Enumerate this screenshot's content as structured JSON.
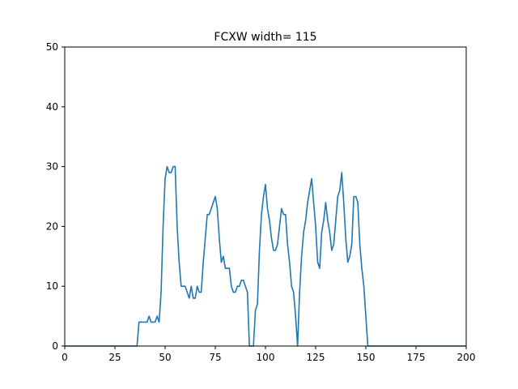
{
  "chart_data": {
    "type": "line",
    "title": "FCXW width= 115",
    "xlabel": "",
    "ylabel": "",
    "xlim": [
      0,
      200
    ],
    "ylim": [
      0,
      50
    ],
    "xticks": [
      0,
      25,
      50,
      75,
      100,
      125,
      150,
      175,
      200
    ],
    "yticks": [
      0,
      10,
      20,
      30,
      40,
      50
    ],
    "grid": false,
    "line_color": "#1f77b4",
    "series": [
      {
        "x": [
          0,
          36,
          37,
          38,
          39,
          40,
          41,
          42,
          43,
          44,
          45,
          46,
          47,
          48,
          49,
          50,
          51,
          52,
          53,
          54,
          55,
          56,
          57,
          58,
          59,
          60,
          61,
          62,
          63,
          64,
          65,
          66,
          67,
          68,
          69,
          70,
          71,
          72,
          73,
          74,
          75,
          76,
          77,
          78,
          79,
          80,
          81,
          82,
          83,
          84,
          85,
          86,
          87,
          88,
          89,
          90,
          91,
          92,
          93,
          94,
          95,
          96,
          97,
          98,
          99,
          100,
          101,
          102,
          103,
          104,
          105,
          106,
          107,
          108,
          109,
          110,
          111,
          112,
          113,
          114,
          115,
          116,
          117,
          118,
          119,
          120,
          121,
          122,
          123,
          124,
          125,
          126,
          127,
          128,
          129,
          130,
          131,
          132,
          133,
          134,
          135,
          136,
          137,
          138,
          139,
          140,
          141,
          142,
          143,
          144,
          145,
          146,
          147,
          148,
          149,
          150,
          151,
          152,
          200
        ],
        "y": [
          0,
          0,
          4,
          4,
          4,
          4,
          4,
          5,
          4,
          4,
          4,
          5,
          4,
          9,
          20,
          28,
          30,
          29,
          29,
          30,
          30,
          20,
          14,
          10,
          10,
          10,
          9,
          8,
          10,
          8,
          8,
          10,
          9,
          9,
          14,
          18,
          22,
          22,
          23,
          24,
          25,
          23,
          18,
          14,
          15,
          13,
          13,
          13,
          10,
          9,
          9,
          10,
          10,
          11,
          11,
          10,
          9,
          0,
          0,
          0,
          6,
          7,
          16,
          22,
          25,
          27,
          23,
          21,
          18,
          16,
          16,
          17,
          20,
          23,
          22,
          22,
          17,
          14,
          10,
          9,
          5,
          0,
          9,
          15,
          19,
          21,
          24,
          26,
          28,
          24,
          20,
          14,
          13,
          19,
          21,
          24,
          21,
          19,
          16,
          17,
          21,
          25,
          26,
          29,
          24,
          18,
          14,
          15,
          17,
          25,
          25,
          24,
          17,
          13,
          10,
          5,
          0,
          0,
          0
        ]
      }
    ]
  }
}
